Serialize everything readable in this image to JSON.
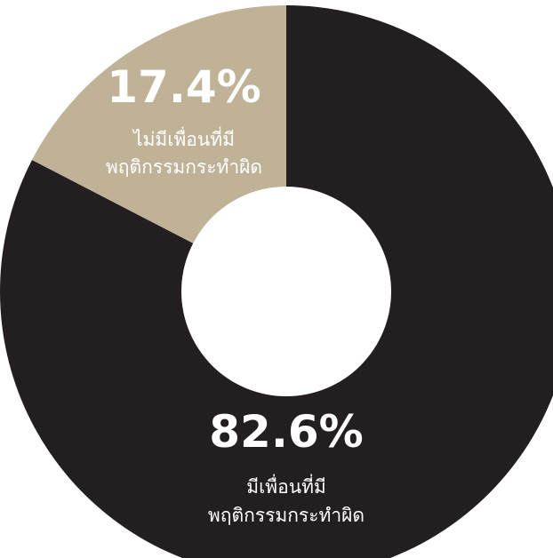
{
  "chart_data": {
    "type": "pie",
    "donut": true,
    "slices": [
      {
        "value": 82.6,
        "value_label": "82.6%",
        "label_lines": [
          "มีเพื่อนที่มี",
          "พฤติกรรมกระทำผิด"
        ],
        "color": "#231f20"
      },
      {
        "value": 17.4,
        "value_label": "17.4%",
        "label_lines": [
          "ไม่มีเพื่อนที่มี",
          "พฤติกรรมกระทำผิด"
        ],
        "color": "#bfb297"
      }
    ]
  }
}
